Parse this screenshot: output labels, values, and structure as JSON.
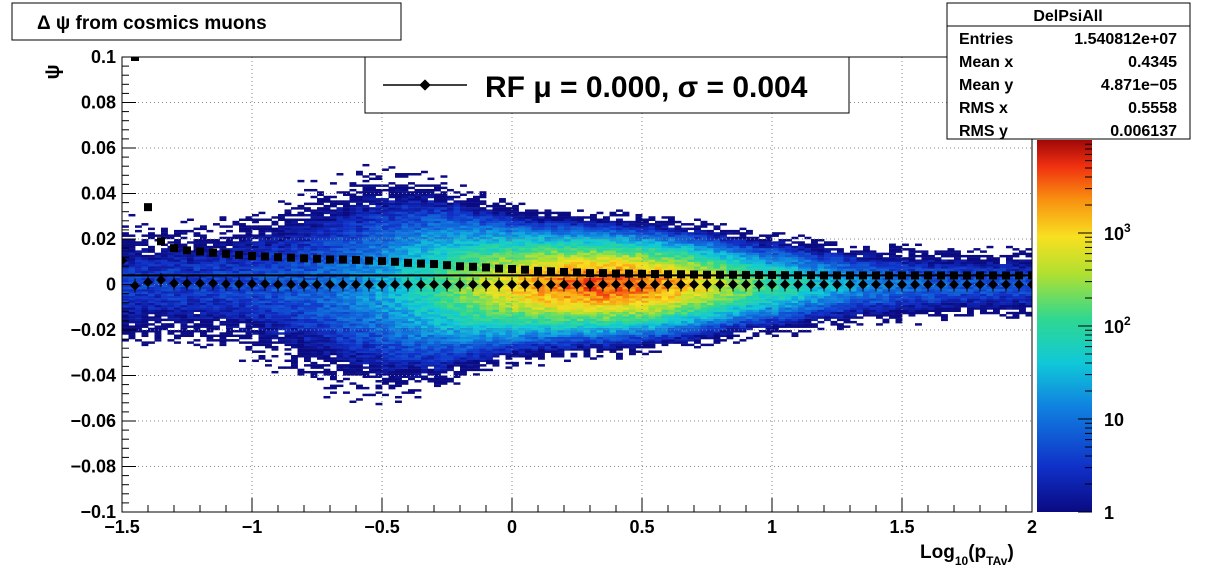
{
  "title": "Δ ψ from cosmics muons",
  "legend": {
    "label": "RF μ =  0.000, σ =   0.004"
  },
  "stats": {
    "name": "DelPsiAll",
    "rows": [
      {
        "label": "Entries",
        "value": "1.540812e+07"
      },
      {
        "label": "Mean x",
        "value": "0.4345"
      },
      {
        "label": "Mean y",
        "value": "4.871e−05"
      },
      {
        "label": "RMS x",
        "value": "0.5558"
      },
      {
        "label": "RMS y",
        "value": "0.006137"
      }
    ]
  },
  "colors": {
    "mean_marker": "#000000",
    "sigma_marker": "#000000"
  },
  "chart_data": {
    "type": "heatmap",
    "title": "Δ ψ from cosmics muons",
    "xlabel": "Log10(pTAv)",
    "xlabel_parts": {
      "main": "Log",
      "sub1": "10",
      "mid": "(p",
      "sub2": "TAv",
      "end": ")"
    },
    "ylabel": "ψ",
    "xlim": [
      -1.5,
      2.0
    ],
    "ylim": [
      -0.1,
      0.1
    ],
    "x_ticks": [
      {
        "v": -1.5,
        "label": "−1.5"
      },
      {
        "v": -1.0,
        "label": "−1"
      },
      {
        "v": -0.5,
        "label": "−0.5"
      },
      {
        "v": 0,
        "label": "0"
      },
      {
        "v": 0.5,
        "label": "0.5"
      },
      {
        "v": 1.0,
        "label": "1"
      },
      {
        "v": 1.5,
        "label": "1.5"
      },
      {
        "v": 2.0,
        "label": "2"
      }
    ],
    "y_ticks": [
      {
        "v": 0.1,
        "label": "0.1"
      },
      {
        "v": 0.08,
        "label": "0.08"
      },
      {
        "v": 0.06,
        "label": "0.06"
      },
      {
        "v": 0.04,
        "label": "0.04"
      },
      {
        "v": 0.02,
        "label": "0.02"
      },
      {
        "v": 0,
        "label": "0"
      },
      {
        "v": -0.02,
        "label": "−0.02"
      },
      {
        "v": -0.04,
        "label": "−0.04"
      },
      {
        "v": -0.06,
        "label": "−0.06"
      },
      {
        "v": -0.08,
        "label": "−0.08"
      },
      {
        "v": -0.1,
        "label": "−0.1"
      }
    ],
    "grid": true,
    "z_scale": "log",
    "zlim": [
      1,
      10000
    ],
    "z_ticks": [
      {
        "v": 1,
        "label": "1"
      },
      {
        "v": 10,
        "label": "10"
      },
      {
        "v": 100,
        "base": "10",
        "exp": "2"
      },
      {
        "v": 1000,
        "base": "10",
        "exp": "3"
      }
    ],
    "mean_line_y": 0.004,
    "series": [
      {
        "name": "RF",
        "marker": "diamond",
        "x": [
          -1.5,
          -1.45,
          -1.4,
          -1.35,
          -1.3,
          -1.25,
          -1.2,
          -1.15,
          -1.1,
          -1.05,
          -1.0,
          -0.95,
          -0.9,
          -0.85,
          -0.8,
          -0.75,
          -0.7,
          -0.65,
          -0.6,
          -0.55,
          -0.5,
          -0.45,
          -0.4,
          -0.35,
          -0.3,
          -0.25,
          -0.2,
          -0.15,
          -0.1,
          -0.05,
          0,
          0.05,
          0.1,
          0.15,
          0.2,
          0.25,
          0.3,
          0.35,
          0.4,
          0.45,
          0.5,
          0.55,
          0.6,
          0.65,
          0.7,
          0.75,
          0.8,
          0.85,
          0.9,
          0.95,
          1.0,
          1.05,
          1.1,
          1.15,
          1.2,
          1.25,
          1.3,
          1.35,
          1.4,
          1.45,
          1.5,
          1.55,
          1.6,
          1.65,
          1.7,
          1.75,
          1.8,
          1.85,
          1.9,
          1.95,
          2.0
        ],
        "y": [
          0.0105,
          -0.0005,
          0.001,
          0.002,
          0.0005,
          0.0005,
          0.0005,
          0.0005,
          0.0002,
          0.0002,
          0.0003,
          0.0003,
          0,
          0,
          0,
          0,
          0,
          0,
          0,
          0,
          0,
          0,
          0,
          0,
          0,
          0,
          0,
          0,
          0,
          0,
          0,
          0,
          0,
          0,
          0,
          0,
          0,
          0,
          0,
          0,
          0,
          0,
          0,
          0,
          0,
          0,
          0,
          0,
          0,
          0,
          0,
          0,
          0,
          0,
          0,
          0,
          0,
          0,
          0,
          0,
          0,
          0,
          0,
          0,
          0,
          0,
          0,
          0,
          0,
          0,
          0
        ]
      },
      {
        "name": "",
        "marker": "square",
        "x": [
          -1.45,
          -1.4,
          -1.35,
          -1.3,
          -1.25,
          -1.2,
          -1.15,
          -1.1,
          -1.05,
          -1.0,
          -0.95,
          -0.9,
          -0.85,
          -0.8,
          -0.75,
          -0.7,
          -0.65,
          -0.6,
          -0.55,
          -0.5,
          -0.45,
          -0.4,
          -0.35,
          -0.3,
          -0.25,
          -0.2,
          -0.15,
          -0.1,
          -0.05,
          0,
          0.05,
          0.1,
          0.15,
          0.2,
          0.25,
          0.3,
          0.35,
          0.4,
          0.45,
          0.5,
          0.55,
          0.6,
          0.65,
          0.7,
          0.75,
          0.8,
          0.85,
          0.9,
          0.95,
          1.0,
          1.05,
          1.1,
          1.15,
          1.2,
          1.25,
          1.3,
          1.35,
          1.4,
          1.45,
          1.5,
          1.55,
          1.6,
          1.65,
          1.7,
          1.75,
          1.8,
          1.85,
          1.9,
          1.95,
          2.0
        ],
        "y": [
          0.1,
          0.034,
          0.019,
          0.016,
          0.015,
          0.0145,
          0.014,
          0.0135,
          0.013,
          0.0125,
          0.0123,
          0.012,
          0.0118,
          0.0115,
          0.0113,
          0.011,
          0.011,
          0.0108,
          0.0105,
          0.0103,
          0.01,
          0.0095,
          0.0092,
          0.009,
          0.0085,
          0.008,
          0.0078,
          0.0075,
          0.007,
          0.0068,
          0.0065,
          0.006,
          0.0058,
          0.0055,
          0.0053,
          0.005,
          0.005,
          0.0048,
          0.0048,
          0.0047,
          0.0046,
          0.0045,
          0.0045,
          0.0044,
          0.0043,
          0.0043,
          0.0043,
          0.0042,
          0.0042,
          0.0042,
          0.0041,
          0.0041,
          0.0041,
          0.004,
          0.004,
          0.004,
          0.004,
          0.004,
          0.004,
          0.004,
          0.004,
          0.004,
          0.004,
          0.004,
          0.004,
          0.004,
          0.004,
          0.004,
          0.004,
          0.004
        ]
      }
    ]
  }
}
